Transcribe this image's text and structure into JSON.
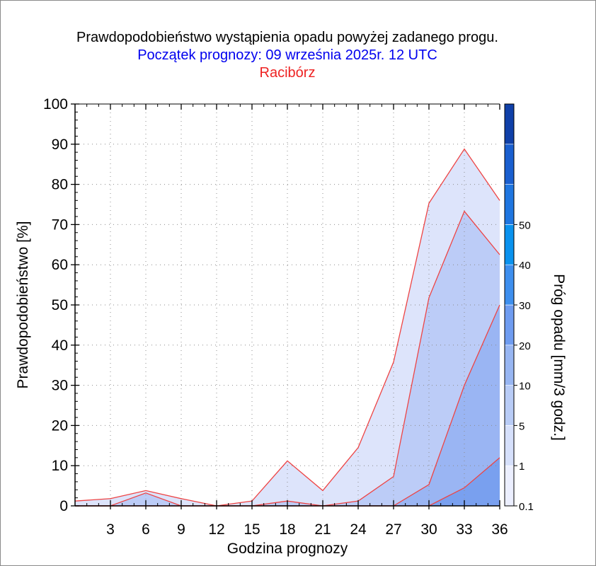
{
  "header": {
    "title": "Prawdopodobieństwo wystąpienia opadu powyżej zadanego progu.",
    "subtitle": "Początek prognozy: 09 września 2025r. 12 UTC",
    "location": "Racibórz"
  },
  "colors": {
    "title": "#000000",
    "subtitle": "#0000ee",
    "location": "#ee2222",
    "series_line": "#ee4444",
    "fills": [
      "#dde4fb",
      "#bcccf7",
      "#9ab5f3",
      "#79a0ef"
    ],
    "colorbar": [
      "#ecefff",
      "#d6e0fb",
      "#b9ccf6",
      "#98b6f2",
      "#6f9cf0",
      "#3e8fee",
      "#0a92ee",
      "#1f76e0",
      "#1a5fcf",
      "#1040a8"
    ]
  },
  "chart_data": {
    "type": "area",
    "title": "Prawdopodobieństwo wystąpienia opadu powyżej zadanego progu.",
    "subtitle": "Początek prognozy: 09 września 2025r. 12 UTC",
    "xlabel": "Godzina prognozy",
    "ylabel": "Prawdopodobieństwo [%]",
    "colorbar_label": "Próg opadu [mm/3 godz.]",
    "xlim": [
      0,
      36
    ],
    "ylim": [
      0,
      100
    ],
    "x_ticks": [
      3,
      6,
      9,
      12,
      15,
      18,
      21,
      24,
      27,
      30,
      33,
      36
    ],
    "y_ticks": [
      0,
      10,
      20,
      30,
      40,
      50,
      60,
      70,
      80,
      90,
      100
    ],
    "grid": true,
    "x": [
      0,
      3,
      6,
      9,
      12,
      15,
      18,
      21,
      24,
      27,
      30,
      33,
      36
    ],
    "series": [
      {
        "threshold": "0.1",
        "values": [
          1.2,
          1.8,
          3.8,
          1.8,
          0,
          1.2,
          11.2,
          3.8,
          14.5,
          35.8,
          75.3,
          88.8,
          76
        ]
      },
      {
        "threshold": "1",
        "values": [
          0,
          0,
          3.2,
          0,
          0,
          0,
          1.2,
          0,
          1.2,
          7.3,
          51.8,
          73.3,
          62.5
        ]
      },
      {
        "threshold": "5",
        "values": [
          0,
          0,
          0,
          0,
          0,
          0,
          0,
          0,
          0,
          0,
          5.3,
          30,
          50
        ]
      },
      {
        "threshold": "10",
        "values": [
          0,
          0,
          0,
          0,
          0,
          0,
          0,
          0,
          0,
          0,
          0,
          4.5,
          12
        ]
      }
    ],
    "colorbar_ticks": [
      "0.1",
      "1",
      "5",
      "10",
      "20",
      "30",
      "40",
      "50"
    ]
  }
}
